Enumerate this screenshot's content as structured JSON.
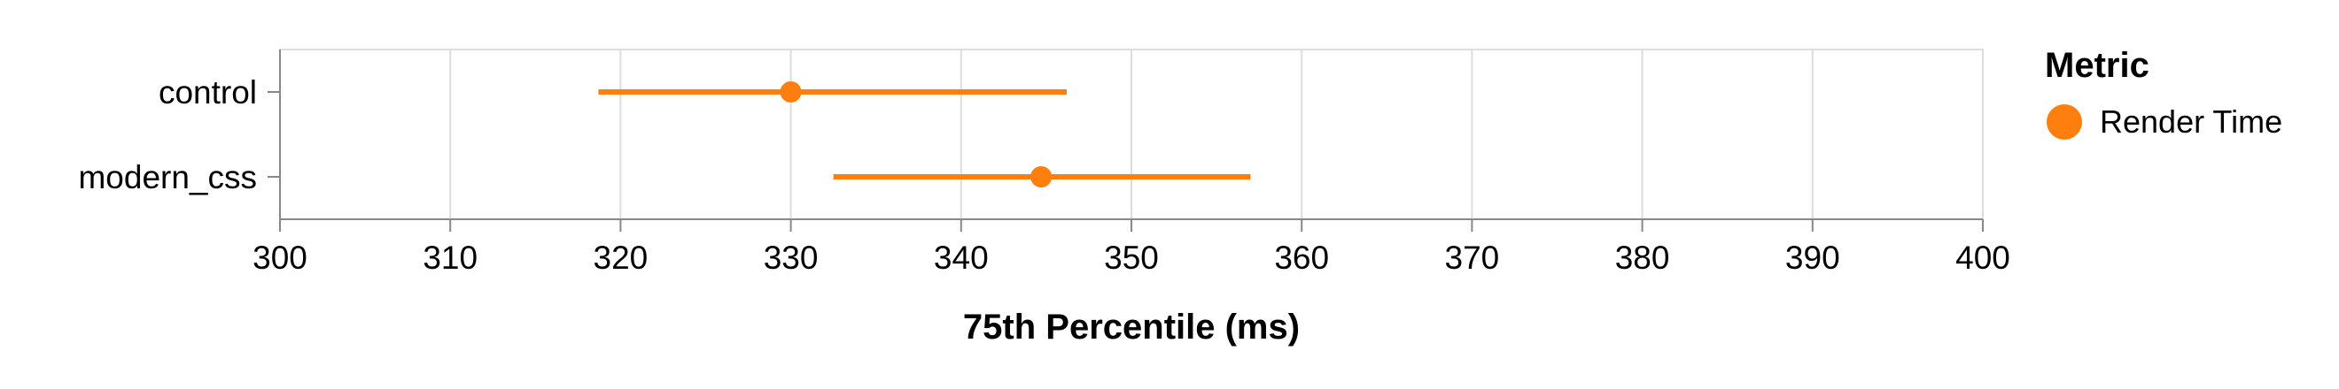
{
  "chart_data": {
    "type": "errorbar",
    "xlabel": "75th Percentile (ms)",
    "xlim": [
      300,
      400
    ],
    "x_ticks": [
      300,
      310,
      320,
      330,
      340,
      350,
      360,
      370,
      380,
      390,
      400
    ],
    "categories": [
      "control",
      "modern_css"
    ],
    "series": [
      {
        "name": "Render Time",
        "color": "#ff7f0e",
        "points": [
          {
            "category": "control",
            "value": 330,
            "low": 318.7,
            "high": 346.2
          },
          {
            "category": "modern_css",
            "value": 344.7,
            "low": 332.5,
            "high": 357
          }
        ]
      }
    ],
    "legend": {
      "title": "Metric",
      "position": "right"
    },
    "grid": true
  }
}
